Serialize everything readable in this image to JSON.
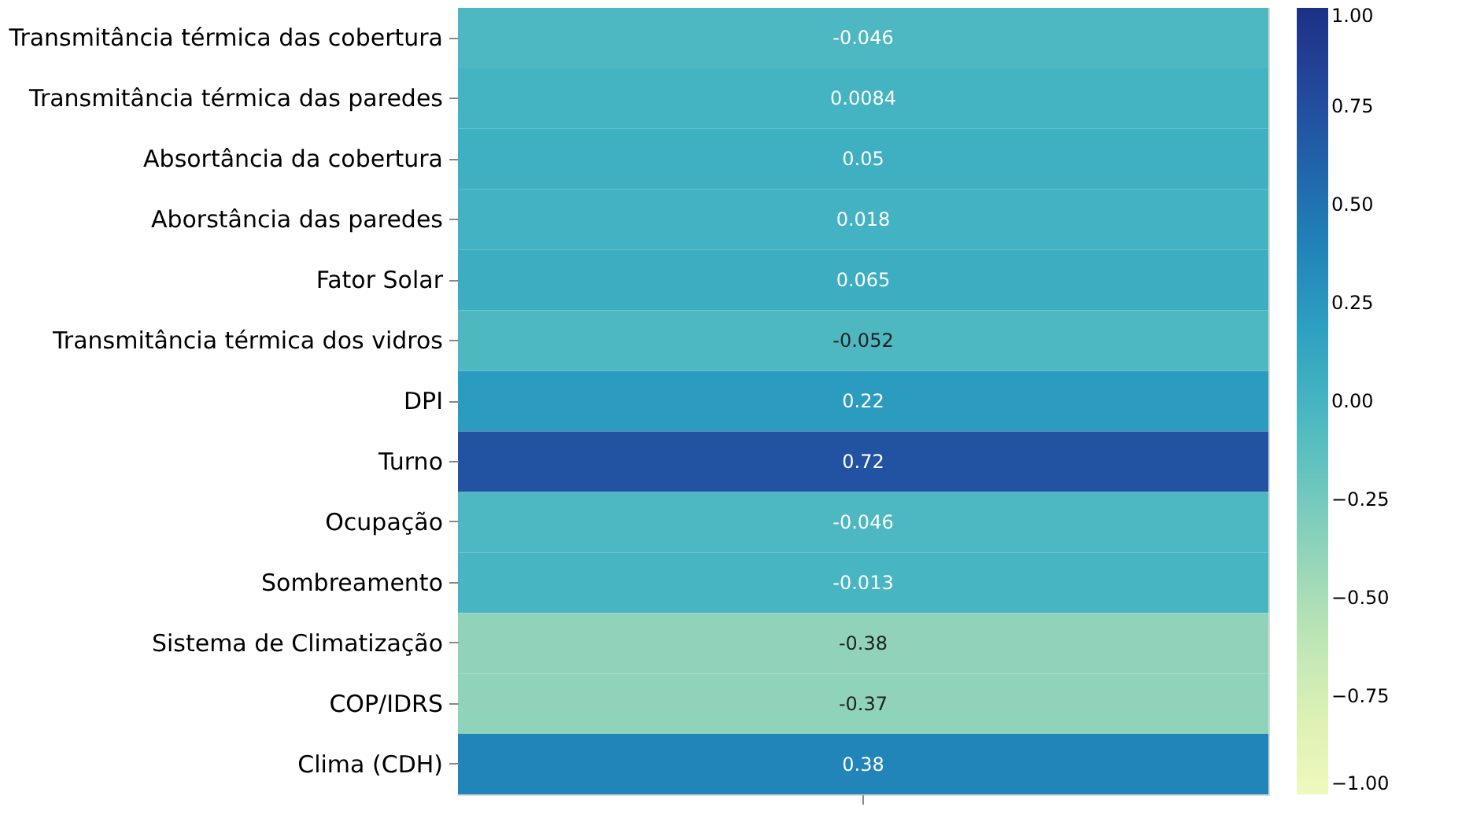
{
  "chart_data": {
    "type": "heatmap",
    "categories": [
      null
    ],
    "y_categories": [
      "Transmitância térmica das cobertura",
      "Transmitância térmica das paredes",
      "Absortância da cobertura",
      "Aborstância das paredes",
      "Fator Solar",
      "Transmitância térmica dos vidros",
      "DPI",
      "Turno",
      "Ocupação",
      "Sombreamento",
      "Sistema de Climatização",
      "COP/IDRS",
      "Clima (CDH)"
    ],
    "cells": [
      [
        -0.046
      ],
      [
        0.0084
      ],
      [
        0.05
      ],
      [
        0.018
      ],
      [
        0.065
      ],
      [
        -0.052
      ],
      [
        0.22
      ],
      [
        0.72
      ],
      [
        -0.046
      ],
      [
        -0.013
      ],
      [
        -0.38
      ],
      [
        -0.37
      ],
      [
        0.38
      ]
    ],
    "data_labels": true,
    "clim": [
      -1,
      1
    ],
    "cticks": [
      {
        "value": -1,
        "label": "−1.00"
      },
      {
        "value": -0.75,
        "label": "−0.75"
      },
      {
        "value": -0.5,
        "label": "−0.50"
      },
      {
        "value": -0.25,
        "label": "−0.25"
      },
      {
        "value": 0,
        "label": "0.00"
      },
      {
        "value": 0.25,
        "label": "0.25"
      },
      {
        "value": 0.5,
        "label": "0.50"
      },
      {
        "value": 0.75,
        "label": "0.75"
      },
      {
        "value": 1,
        "label": "1.00"
      }
    ]
  }
}
